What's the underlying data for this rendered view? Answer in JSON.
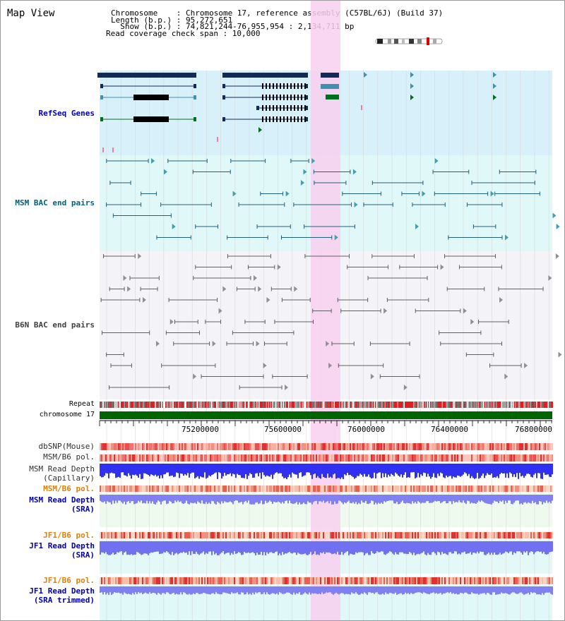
{
  "view": {
    "title": "Map View"
  },
  "info": {
    "chromosome_label": "Chromosome    : Chromosome 17, reference assembly (C57BL/6J) (Build 37)",
    "length_label": "Length (b.p.) : 95,272,651",
    "show_label": "  Show (b.p.) : 74,821,244-76,955,954 : 2,134,711 bp",
    "coverage_label": "Read coverage check span : 10,000"
  },
  "tracks": {
    "refseq": {
      "label": "RefSeq Genes",
      "color": "#0000b0"
    },
    "msm_bac": {
      "label": "MSM BAC end pairs",
      "color": "#006080"
    },
    "b6n_bac": {
      "label": "B6N BAC end pairs",
      "color": "#404040"
    },
    "repeat": {
      "label": "Repeat"
    },
    "chromosome": {
      "label": "chromosome 17"
    },
    "dbsnp": {
      "label": "dbSNP(Mouse)"
    },
    "msm_b6_pol": {
      "label": "MSM/B6 pol."
    },
    "msm_read_depth_cap": {
      "label": "MSM Read Depth\n(Capillary)"
    },
    "msm_b6_pol2": {
      "label": "MSM/B6 pol."
    },
    "msm_read_depth_sra": {
      "label": "MSM Read Depth\n(SRA)"
    },
    "jf1_b6_pol": {
      "label": "JF1/B6 pol."
    },
    "jf1_read_depth_sra": {
      "label": "JF1 Read Depth\n(SRA)"
    },
    "jf1_b6_pol2": {
      "label": "JF1/B6 pol."
    },
    "jf1_read_depth_trim": {
      "label": "JF1 Read Depth\n(SRA trimmed)"
    }
  },
  "axis": {
    "ticks": [
      "75200000",
      "75600000",
      "76000000",
      "76400000",
      "76800000"
    ]
  },
  "colors": {
    "highlight": "#f8d0f0",
    "refseq_bg": "#d8f0fa",
    "msm_bg": "#e0f8f8",
    "b6n_bg": "#f4f4f8",
    "gene_dark": "#102a5a",
    "gene_mid": "#4090b0",
    "gene_green": "#007020",
    "chromosome_green": "#006400",
    "orange_label": "#e08000",
    "blue_label": "#0000b0"
  }
}
